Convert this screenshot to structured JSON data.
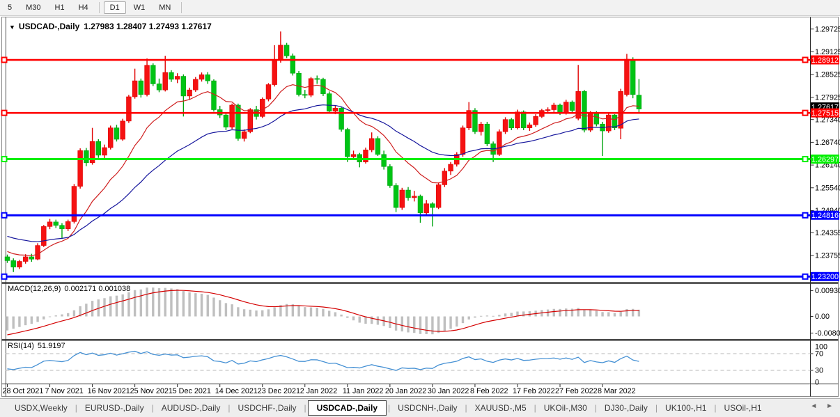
{
  "toolbar": {
    "timeframes": [
      {
        "label": "5",
        "selected": false
      },
      {
        "label": "M30",
        "selected": false
      },
      {
        "label": "H1",
        "selected": false
      },
      {
        "label": "H4",
        "selected": false
      },
      {
        "label": "D1",
        "selected": true
      },
      {
        "label": "W1",
        "selected": false
      },
      {
        "label": "MN",
        "selected": false
      }
    ]
  },
  "chart": {
    "collapse_icon": "▼",
    "title_symbol": "USDCAD-,Daily",
    "title_ohlc": "1.27983 1.28407 1.27493 1.27617"
  },
  "chart_data": {
    "type": "candlestick",
    "symbol": "USDCAD-",
    "timeframe": "Daily",
    "last_ohlc": {
      "open": 1.27983,
      "high": 1.28407,
      "low": 1.27493,
      "close": 1.27617
    },
    "colors": {
      "up": "#f51212",
      "up_stroke": "#e00000",
      "down": "#00c414",
      "down_stroke": "#00a410",
      "ma_fast": "#cf1f1f",
      "ma_slow": "#15159c",
      "macd_bar": "#bfbfbf",
      "macd_signal": "#d40000",
      "rsi_line": "#4490d4",
      "level_dash": "#c6c6c6",
      "badge_text": "#ffffff",
      "current_badge": "#000000"
    },
    "price_axis": {
      "tick_labels": [
        "1.29725",
        "1.29125",
        "1.28525",
        "1.27925",
        "1.27340",
        "1.26740",
        "1.26140",
        "1.25540",
        "1.24940",
        "1.24355",
        "1.23755"
      ],
      "view_top": 1.2994,
      "view_bottom": 1.23077
    },
    "hlines": [
      {
        "price": 1.28912,
        "label": "1.28912",
        "color": "#ff0000",
        "width": 2.6
      },
      {
        "price": 1.27515,
        "label": "1.27515",
        "color": "#ff0000",
        "width": 2.6
      },
      {
        "price": 1.26297,
        "label": "1.26297",
        "color": "#00ef00",
        "width": 3
      },
      {
        "price": 1.24816,
        "label": "1.24816",
        "color": "#0000ff",
        "width": 3
      },
      {
        "price": 1.232,
        "label": "1.23200",
        "color": "#0000ff",
        "width": 3
      }
    ],
    "current_price": {
      "label": "1.27617",
      "price": 1.27617
    },
    "x_axis": {
      "labels": [
        "28 Oct 2021",
        "7 Nov 2021",
        "16 Nov 2021",
        "25 Nov 2021",
        "5 Dec 2021",
        "14 Dec 2021",
        "23 Dec 2021",
        "2 Jan 2022",
        "11 Jan 2022",
        "20 Jan 2022",
        "30 Jan 2022",
        "8 Feb 2022",
        "17 Feb 2022",
        "27 Feb 2022",
        "8 Mar 2022"
      ],
      "tick_candle_interval": 7
    },
    "ma": {
      "fast": {
        "period": 13,
        "seed": 1.239
      },
      "slow": {
        "period": 34,
        "seed": 1.243
      }
    },
    "macd": {
      "label": "MACD(12,26,9)",
      "values_text": "0.002171 0.001038",
      "main_value": 0.002171,
      "signal_value": 0.001038,
      "fast": 12,
      "slow": 26,
      "signal": 9,
      "seeds": {
        "ema12": 1.2305,
        "ema26": 1.2368,
        "signal": -0.0075
      },
      "axis_labels": {
        "top": "0.009303",
        "zero": "0.00",
        "bottom": "-0.00801"
      }
    },
    "rsi": {
      "label": "RSI(14)",
      "value_text": "51.9197",
      "value": 51.9197,
      "period": 14,
      "levels": [
        70,
        30
      ],
      "axis_labels": [
        "100",
        "70",
        "30",
        "0"
      ],
      "seeds": {
        "gain": 0.0009,
        "loss": 0.0017
      }
    },
    "candles": [
      [
        1.2372,
        1.2378,
        1.2356,
        1.2362
      ],
      [
        1.2362,
        1.2368,
        1.2332,
        1.2345
      ],
      [
        1.2345,
        1.2364,
        1.234,
        1.236
      ],
      [
        1.236,
        1.2379,
        1.2354,
        1.2372
      ],
      [
        1.2372,
        1.238,
        1.2359,
        1.2366
      ],
      [
        1.2366,
        1.2408,
        1.2363,
        1.2402
      ],
      [
        1.2402,
        1.2456,
        1.2398,
        1.2452
      ],
      [
        1.2452,
        1.2472,
        1.2445,
        1.2464
      ],
      [
        1.2464,
        1.247,
        1.2448,
        1.2455
      ],
      [
        1.2455,
        1.2461,
        1.242,
        1.2446
      ],
      [
        1.2446,
        1.247,
        1.244,
        1.2465
      ],
      [
        1.2465,
        1.2564,
        1.246,
        1.2558
      ],
      [
        1.2558,
        1.2658,
        1.2552,
        1.2652
      ],
      [
        1.2652,
        1.2659,
        1.2611,
        1.262
      ],
      [
        1.262,
        1.2712,
        1.2615,
        1.2676
      ],
      [
        1.2676,
        1.2682,
        1.2633,
        1.264
      ],
      [
        1.264,
        1.2668,
        1.263,
        1.266
      ],
      [
        1.266,
        1.2718,
        1.2655,
        1.2712
      ],
      [
        1.2712,
        1.272,
        1.2676,
        1.2682
      ],
      [
        1.2682,
        1.2736,
        1.2678,
        1.273
      ],
      [
        1.273,
        1.2799,
        1.2725,
        1.2794
      ],
      [
        1.2794,
        1.2868,
        1.2789,
        1.2836
      ],
      [
        1.2836,
        1.2842,
        1.2792,
        1.28
      ],
      [
        1.28,
        1.2895,
        1.2795,
        1.2877
      ],
      [
        1.2877,
        1.2882,
        1.2822,
        1.2828
      ],
      [
        1.2828,
        1.2842,
        1.2806,
        1.2812
      ],
      [
        1.2812,
        1.2902,
        1.2808,
        1.2858
      ],
      [
        1.2858,
        1.2864,
        1.2833,
        1.284
      ],
      [
        1.284,
        1.2856,
        1.283,
        1.2848
      ],
      [
        1.2848,
        1.2853,
        1.2742,
        1.2796
      ],
      [
        1.2796,
        1.2818,
        1.2786,
        1.2812
      ],
      [
        1.2812,
        1.2846,
        1.2807,
        1.284
      ],
      [
        1.284,
        1.2858,
        1.2834,
        1.2852
      ],
      [
        1.2852,
        1.2859,
        1.2828,
        1.2836
      ],
      [
        1.2836,
        1.284,
        1.2755,
        1.276
      ],
      [
        1.276,
        1.277,
        1.2738,
        1.2746
      ],
      [
        1.2746,
        1.2752,
        1.2706,
        1.2714
      ],
      [
        1.2714,
        1.2776,
        1.2709,
        1.2772
      ],
      [
        1.2772,
        1.2776,
        1.2678,
        1.2684
      ],
      [
        1.2684,
        1.2708,
        1.2676,
        1.2702
      ],
      [
        1.2702,
        1.2764,
        1.2698,
        1.276
      ],
      [
        1.276,
        1.277,
        1.2734,
        1.2742
      ],
      [
        1.2742,
        1.2792,
        1.2738,
        1.2788
      ],
      [
        1.2788,
        1.283,
        1.2782,
        1.2826
      ],
      [
        1.2826,
        1.293,
        1.2821,
        1.289
      ],
      [
        1.289,
        1.2966,
        1.2884,
        1.293
      ],
      [
        1.293,
        1.2936,
        1.2896,
        1.2902
      ],
      [
        1.2902,
        1.2908,
        1.285,
        1.2856
      ],
      [
        1.2856,
        1.2862,
        1.2795,
        1.28
      ],
      [
        1.28,
        1.2812,
        1.279,
        1.2798
      ],
      [
        1.2798,
        1.2846,
        1.2793,
        1.2842
      ],
      [
        1.2842,
        1.285,
        1.2828,
        1.284
      ],
      [
        1.284,
        1.2844,
        1.2796,
        1.2802
      ],
      [
        1.2802,
        1.2808,
        1.275,
        1.2756
      ],
      [
        1.2756,
        1.277,
        1.2748,
        1.2764
      ],
      [
        1.2764,
        1.2768,
        1.2702,
        1.2708
      ],
      [
        1.2708,
        1.2712,
        1.2622,
        1.2636
      ],
      [
        1.2636,
        1.2652,
        1.2628,
        1.2642
      ],
      [
        1.2642,
        1.2646,
        1.2608,
        1.2622
      ],
      [
        1.2622,
        1.266,
        1.2618,
        1.2654
      ],
      [
        1.2654,
        1.27,
        1.2648,
        1.2684
      ],
      [
        1.2684,
        1.269,
        1.2638,
        1.2642
      ],
      [
        1.2642,
        1.2652,
        1.2602,
        1.261
      ],
      [
        1.261,
        1.2616,
        1.2554,
        1.256
      ],
      [
        1.256,
        1.2566,
        1.249,
        1.2502
      ],
      [
        1.2502,
        1.2554,
        1.2496,
        1.2548
      ],
      [
        1.2548,
        1.2556,
        1.252,
        1.2528
      ],
      [
        1.2528,
        1.2546,
        1.2518,
        1.2532
      ],
      [
        1.2532,
        1.2536,
        1.2462,
        1.2488
      ],
      [
        1.2488,
        1.2522,
        1.2482,
        1.2512
      ],
      [
        1.2512,
        1.2516,
        1.2452,
        1.2502
      ],
      [
        1.2502,
        1.2568,
        1.2498,
        1.2562
      ],
      [
        1.2562,
        1.2606,
        1.2556,
        1.2598
      ],
      [
        1.2598,
        1.2622,
        1.2588,
        1.2616
      ],
      [
        1.2616,
        1.2648,
        1.261,
        1.2642
      ],
      [
        1.2642,
        1.2718,
        1.2636,
        1.2712
      ],
      [
        1.2712,
        1.278,
        1.2706,
        1.2758
      ],
      [
        1.2758,
        1.2764,
        1.2696,
        1.2702
      ],
      [
        1.2702,
        1.2728,
        1.2692,
        1.2722
      ],
      [
        1.2722,
        1.2728,
        1.2664,
        1.267
      ],
      [
        1.267,
        1.2676,
        1.2622,
        1.2642
      ],
      [
        1.2642,
        1.2708,
        1.2638,
        1.2702
      ],
      [
        1.2702,
        1.274,
        1.2696,
        1.2734
      ],
      [
        1.2734,
        1.2738,
        1.2706,
        1.2712
      ],
      [
        1.2712,
        1.276,
        1.2708,
        1.2754
      ],
      [
        1.2754,
        1.2758,
        1.2706,
        1.2712
      ],
      [
        1.2712,
        1.2726,
        1.2704,
        1.272
      ],
      [
        1.272,
        1.2748,
        1.2715,
        1.2742
      ],
      [
        1.2742,
        1.2762,
        1.2738,
        1.2758
      ],
      [
        1.2758,
        1.2766,
        1.275,
        1.276
      ],
      [
        1.276,
        1.2778,
        1.2754,
        1.2772
      ],
      [
        1.2772,
        1.2776,
        1.2746,
        1.2752
      ],
      [
        1.2752,
        1.2786,
        1.2747,
        1.278
      ],
      [
        1.278,
        1.2784,
        1.2752,
        1.2758
      ],
      [
        1.2737,
        1.2878,
        1.2732,
        1.2808
      ],
      [
        1.2808,
        1.2812,
        1.27,
        1.2706
      ],
      [
        1.2706,
        1.2756,
        1.2701,
        1.2752
      ],
      [
        1.2752,
        1.2756,
        1.2716,
        1.2722
      ],
      [
        1.2722,
        1.2728,
        1.2638,
        1.2704
      ],
      [
        1.2704,
        1.275,
        1.2699,
        1.2746
      ],
      [
        1.2746,
        1.2748,
        1.2706,
        1.2712
      ],
      [
        1.2711,
        1.2815,
        1.2682,
        1.2808
      ],
      [
        1.28,
        1.2907,
        1.2795,
        1.2893
      ],
      [
        1.2891,
        1.2898,
        1.279,
        1.28
      ],
      [
        1.27983,
        1.28407,
        1.27493,
        1.27617
      ]
    ]
  },
  "tabs": {
    "items": [
      {
        "label": "USDX,Weekly",
        "active": false
      },
      {
        "label": "EURUSD-,Daily",
        "active": false
      },
      {
        "label": "AUDUSD-,Daily",
        "active": false
      },
      {
        "label": "USDCHF-,Daily",
        "active": false
      },
      {
        "label": "USDCAD-,Daily",
        "active": true
      },
      {
        "label": "USDCNH-,Daily",
        "active": false
      },
      {
        "label": "XAUUSD-,M5",
        "active": false
      },
      {
        "label": "UKOil-,M30",
        "active": false
      },
      {
        "label": "DJ30-,Daily",
        "active": false
      },
      {
        "label": "UK100-,H1",
        "active": false
      },
      {
        "label": "USOil-,H1",
        "active": false
      }
    ],
    "nav_left": "◄",
    "nav_right": "►"
  }
}
